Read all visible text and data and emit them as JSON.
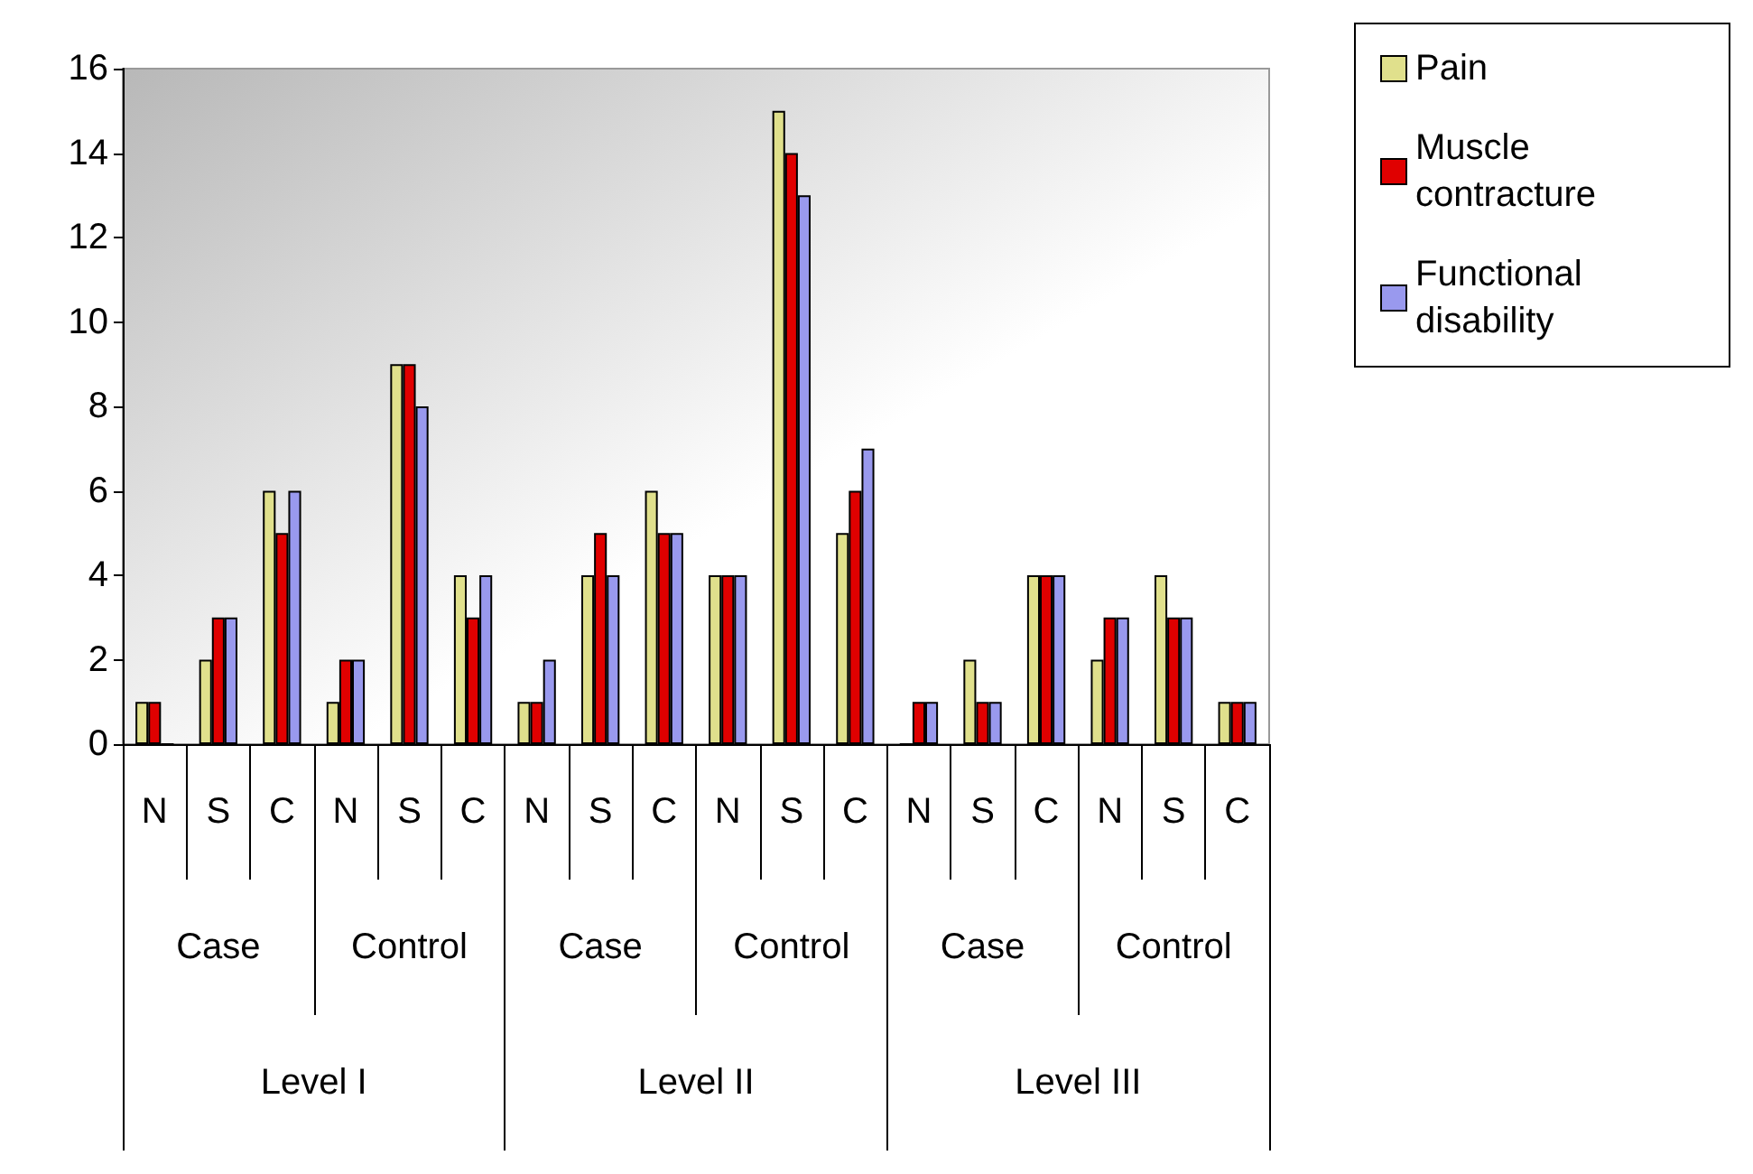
{
  "chart_data": {
    "type": "bar",
    "categories": [
      "N",
      "S",
      "C",
      "N",
      "S",
      "C",
      "N",
      "S",
      "C",
      "N",
      "S",
      "C",
      "N",
      "S",
      "C",
      "N",
      "S",
      "C"
    ],
    "series": [
      {
        "name": "Pain",
        "color": "#e0e08c",
        "values": [
          1,
          2,
          6,
          1,
          9,
          4,
          1,
          4,
          6,
          4,
          15,
          5,
          0,
          2,
          4,
          2,
          4,
          1
        ]
      },
      {
        "name": "Muscle contracture",
        "color": "#e00000",
        "values": [
          1,
          3,
          5,
          2,
          9,
          3,
          1,
          5,
          5,
          4,
          14,
          6,
          1,
          1,
          4,
          3,
          3,
          1
        ]
      },
      {
        "name": "Functional disability",
        "color": "#9999ee",
        "values": [
          0,
          3,
          6,
          2,
          8,
          4,
          2,
          4,
          5,
          4,
          13,
          7,
          1,
          1,
          4,
          3,
          3,
          1
        ]
      }
    ],
    "annotations": [
      "Case",
      "Control",
      "Case",
      "Control",
      "Case",
      "Control",
      "Level I",
      "Level II",
      "Level III"
    ],
    "ylim": [
      0,
      16
    ],
    "yticks": [
      0,
      2,
      4,
      6,
      8,
      10,
      12,
      14,
      16
    ],
    "grid": false,
    "legend": "top right"
  }
}
